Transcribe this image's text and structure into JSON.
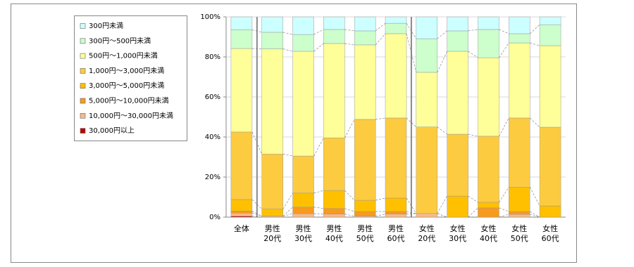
{
  "chart_data": {
    "type": "stacked_bar",
    "categories": [
      "全体",
      "男性\n20代",
      "男性\n30代",
      "男性\n40代",
      "男性\n50代",
      "男性\n60代",
      "女性\n20代",
      "女性\n30代",
      "女性\n40代",
      "女性\n50代",
      "女性\n60代"
    ],
    "series": [
      {
        "name": "30,000円以上",
        "color": "#c00000",
        "values": [
          0.5,
          0,
          0,
          0,
          0,
          0,
          0,
          0,
          0,
          0,
          0
        ]
      },
      {
        "name": "10,000円～30,000円未満",
        "color": "#f8b98a",
        "values": [
          1.5,
          0.5,
          1.7,
          1.5,
          0.5,
          1.5,
          1.8,
          0,
          0,
          1.4,
          0
        ]
      },
      {
        "name": "5,000円～10,000円未満",
        "color": "#f79a1e",
        "values": [
          1.0,
          0,
          3.3,
          2.8,
          2.3,
          1.3,
          0,
          0,
          4.6,
          1.4,
          0
        ]
      },
      {
        "name": "3,000円～5,000円未満",
        "color": "#ffc000",
        "values": [
          5.8,
          3.5,
          7.0,
          9.0,
          5.6,
          6.7,
          0,
          10.5,
          2.8,
          12.2,
          5.6
        ]
      },
      {
        "name": "1,000円～3,000円未満",
        "color": "#fdcb3f",
        "values": [
          33.7,
          27.5,
          18.5,
          26.3,
          40.4,
          40.0,
          43.2,
          30.9,
          33.0,
          34.5,
          39.3
        ]
      },
      {
        "name": "500円～1,000円未満",
        "color": "#ffff99",
        "values": [
          41.7,
          52.5,
          52.3,
          47.1,
          37.2,
          42.1,
          27.3,
          41.4,
          39.2,
          37.5,
          40.7
        ]
      },
      {
        "name": "300円～500円未満",
        "color": "#ccffcc",
        "values": [
          9.3,
          8.3,
          8.4,
          7.0,
          7.0,
          5.2,
          16.8,
          10.2,
          14.1,
          4.6,
          10.5
        ]
      },
      {
        "name": "300円未満",
        "color": "#ccffff",
        "values": [
          6.5,
          7.7,
          8.8,
          6.3,
          7.0,
          3.2,
          10.9,
          7.0,
          6.3,
          8.4,
          3.9
        ]
      }
    ],
    "ylim": [
      0,
      100
    ],
    "yticks": [
      {
        "value": 0,
        "label": "0%"
      },
      {
        "value": 20,
        "label": "20%"
      },
      {
        "value": 40,
        "label": "40%"
      },
      {
        "value": 60,
        "label": "60%"
      },
      {
        "value": 80,
        "label": "80%"
      },
      {
        "value": 100,
        "label": "100%"
      }
    ],
    "grid": true,
    "legend": "left"
  }
}
